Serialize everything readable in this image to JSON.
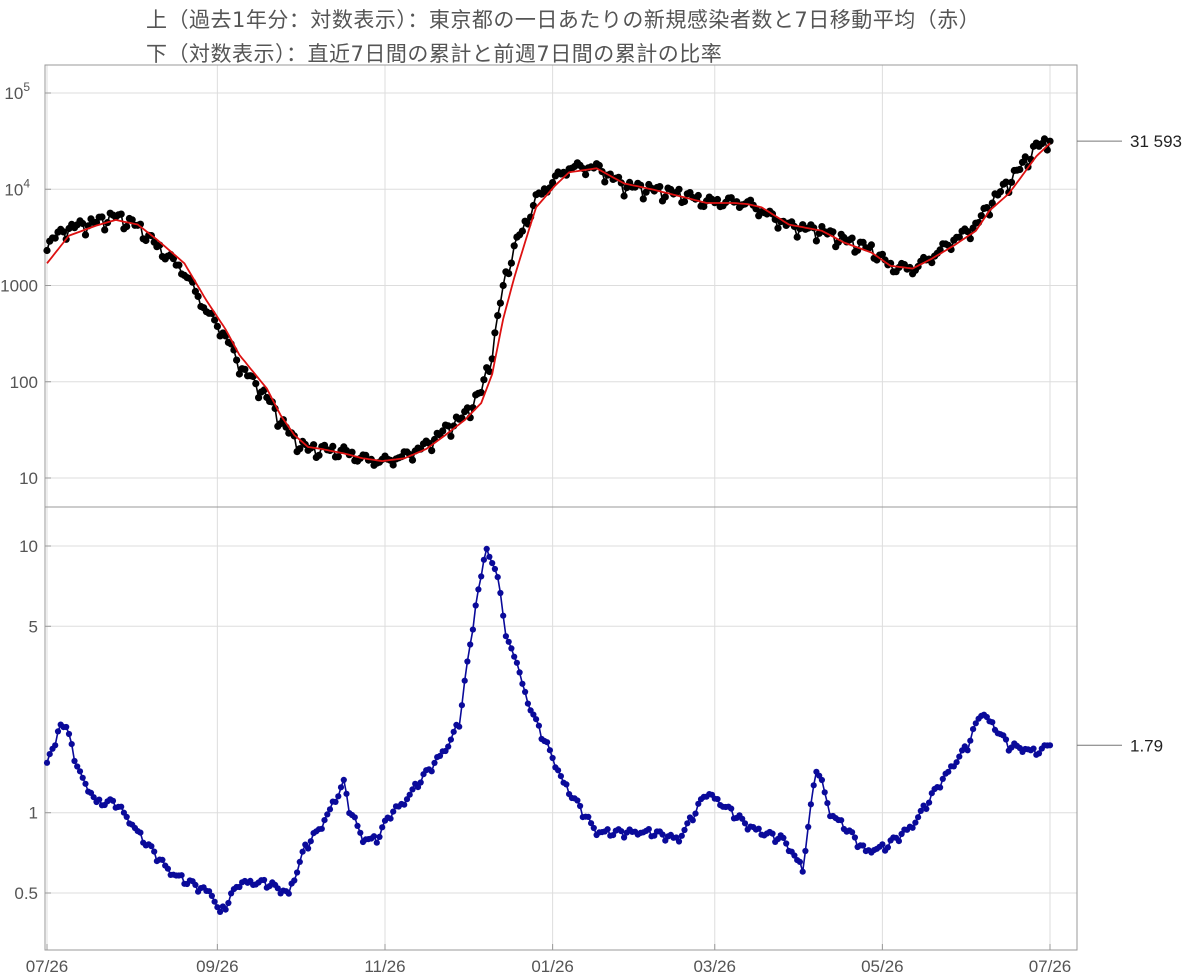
{
  "header": {
    "title_top": "上（過去1年分：対数表示）：東京都の一日あたりの新規感染者数と7日移動平均（赤）",
    "title_bottom": "下（対数表示）：直近7日間の累計と前週7日間の累計の比率"
  },
  "colors": {
    "daily": "#000000",
    "moving_average": "#dd1111",
    "ratio": "#0a0a9a",
    "grid": "#dddddd",
    "frame": "#999999"
  },
  "chart_data": [
    {
      "type": "line",
      "scale": "log",
      "grid": true,
      "x_tick_labels": [
        "07/26",
        "09/26",
        "11/26",
        "01/26",
        "03/26",
        "05/26",
        "07/26"
      ],
      "x_tick_days": [
        0,
        62,
        123,
        184,
        243,
        304,
        365
      ],
      "y_ticks": [
        {
          "value": 10,
          "label": "10"
        },
        {
          "value": 100,
          "label": "100"
        },
        {
          "value": 1000,
          "label": "1000"
        },
        {
          "value": 10000,
          "label": "10",
          "exp": "4"
        },
        {
          "value": 100000,
          "label": "10",
          "exp": "5"
        }
      ],
      "ylim": [
        4.5,
        160000
      ],
      "series": [
        {
          "role": "daily",
          "knots_day": [
            0,
            8,
            18,
            25,
            33,
            40,
            50,
            58,
            65,
            70,
            80,
            85,
            90,
            95,
            100,
            108,
            115,
            122,
            130,
            138,
            145,
            152,
            158,
            162,
            166,
            170,
            175,
            178,
            185,
            190,
            200,
            210,
            220,
            230,
            240,
            250,
            255,
            260,
            270,
            282,
            290,
            300,
            307,
            315,
            322,
            330,
            338,
            343,
            350,
            355,
            360,
            365
          ],
          "knots_value": [
            2800,
            4000,
            4600,
            5300,
            4200,
            2600,
            1400,
            550,
            300,
            150,
            70,
            40,
            25,
            20,
            20,
            19,
            16,
            15,
            17,
            22,
            32,
            45,
            80,
            200,
            1000,
            2500,
            5000,
            8000,
            13000,
            17000,
            17000,
            11000,
            10000,
            9000,
            7500,
            7500,
            7200,
            6000,
            4200,
            3700,
            3000,
            2400,
            1600,
            1500,
            2000,
            3000,
            4200,
            7000,
            12000,
            18000,
            28000,
            31593
          ]
        },
        {
          "role": "moving_average",
          "knots_day": [
            0,
            8,
            18,
            25,
            33,
            40,
            50,
            58,
            65,
            70,
            80,
            85,
            90,
            95,
            100,
            108,
            115,
            122,
            130,
            138,
            145,
            152,
            158,
            162,
            166,
            170,
            175,
            178,
            185,
            190,
            200,
            210,
            220,
            230,
            240,
            250,
            255,
            260,
            270,
            282,
            290,
            300,
            307,
            315,
            322,
            330,
            338,
            343,
            350,
            355,
            360,
            365
          ],
          "knots_value": [
            1700,
            3300,
            4200,
            4800,
            4300,
            3000,
            1700,
            700,
            350,
            190,
            85,
            45,
            28,
            21,
            20,
            18,
            16,
            15,
            16,
            20,
            28,
            40,
            60,
            120,
            450,
            1200,
            3500,
            6500,
            11000,
            15000,
            16500,
            11500,
            10000,
            8500,
            7200,
            7200,
            7000,
            6500,
            4300,
            3700,
            2800,
            2200,
            1600,
            1500,
            1900,
            2600,
            3700,
            6000,
            9000,
            14000,
            22000,
            30000
          ]
        }
      ],
      "last_value_label": "31 593"
    },
    {
      "type": "line",
      "scale": "log",
      "grid": true,
      "x_tick_labels": [
        "07/26",
        "09/26",
        "11/26",
        "01/26",
        "03/26",
        "05/26",
        "07/26"
      ],
      "x_tick_days": [
        0,
        62,
        123,
        184,
        243,
        304,
        365
      ],
      "y_ticks": [
        {
          "value": 0.5,
          "label": "0.5"
        },
        {
          "value": 1,
          "label": "1"
        },
        {
          "value": 5,
          "label": "5"
        },
        {
          "value": 10,
          "label": "10"
        }
      ],
      "ylim": [
        0.37,
        13.5
      ],
      "series": [
        {
          "role": "ratio",
          "knots_day": [
            0,
            3,
            5,
            7,
            12,
            18,
            25,
            35,
            45,
            52,
            60,
            63,
            70,
            80,
            88,
            94,
            100,
            108,
            110,
            115,
            120,
            125,
            130,
            135,
            140,
            146,
            150,
            156,
            160,
            165,
            167,
            170,
            174,
            178,
            182,
            188,
            200,
            210,
            220,
            230,
            240,
            250,
            255,
            260,
            268,
            275,
            280,
            282,
            285,
            290,
            298,
            305,
            315,
            325,
            335,
            340,
            345,
            350,
            355,
            360,
            365
          ],
          "knots_value": [
            1.6,
            1.8,
            2.2,
            2.1,
            1.4,
            1.1,
            1.1,
            0.8,
            0.6,
            0.55,
            0.5,
            0.42,
            0.55,
            0.55,
            0.5,
            0.75,
            0.9,
            1.3,
            1.05,
            0.8,
            0.8,
            1.0,
            1.1,
            1.3,
            1.5,
            1.8,
            2.2,
            6.0,
            10.0,
            7.0,
            4.5,
            4.0,
            2.8,
            2.2,
            1.8,
            1.3,
            0.85,
            0.85,
            0.85,
            0.8,
            1.2,
            1.0,
            0.9,
            0.85,
            0.8,
            0.62,
            1.5,
            1.3,
            1.0,
            0.9,
            0.72,
            0.75,
            0.9,
            1.3,
            1.8,
            2.4,
            2.1,
            1.8,
            1.75,
            1.7,
            1.79
          ]
        }
      ],
      "last_value_label": "1.79"
    }
  ]
}
